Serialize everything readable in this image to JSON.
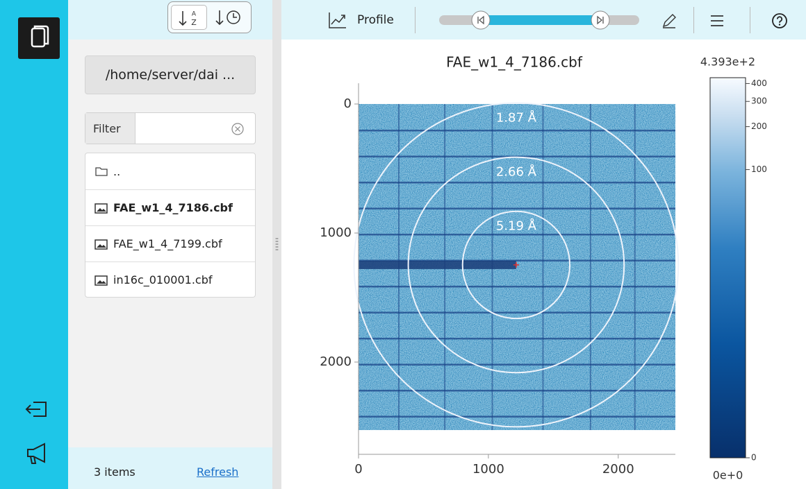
{
  "file_panel": {
    "path": "/home/server/dai ...",
    "filter_label": "Filter",
    "entries": [
      "..",
      "FAE_w1_4_7186.cbf",
      "FAE_w1_4_7199.cbf",
      "in16c_010001.cbf"
    ],
    "selected": 1,
    "item_count": "3 items",
    "refresh": "Refresh"
  },
  "toolbar": {
    "profile": "Profile"
  },
  "viewer": {
    "title": "FAE_w1_4_7186.cbf",
    "xlim": [
      0,
      2440
    ],
    "ylim": [
      -161,
      2715
    ],
    "xticks": [
      0,
      1000,
      2000
    ],
    "yticks": [
      0,
      1000,
      2000
    ],
    "image_width": 2440,
    "image_height": 2527,
    "beam_center": [
      1214,
      1247
    ],
    "rings": [
      {
        "label": "5.19 Å",
        "radius": 413
      },
      {
        "label": "2.66 Å",
        "radius": 831
      },
      {
        "label": "1.87 Å",
        "radius": 1249
      }
    ],
    "colorbar": {
      "scale": "log1p",
      "max": {
        "value": 439.3,
        "label": "4.393e+2"
      },
      "min": {
        "value": 0,
        "label": "0e+0"
      },
      "ticks": [
        0,
        100,
        200,
        300,
        400
      ]
    }
  }
}
